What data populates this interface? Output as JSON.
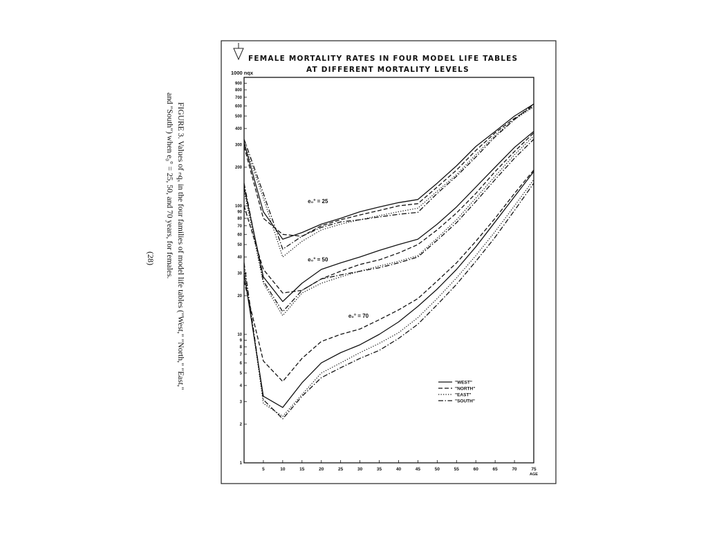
{
  "caption": {
    "line1": "FIGURE 3. Values of ₙqₓ in the four families of model life tables (\"West,\" \"North,\" \"East,\"",
    "line2": "and \"South\") when e₀° = 25, 50, and 70 years, for females.",
    "page_number": "(28)"
  },
  "chart_data": {
    "type": "line",
    "title": "FEMALE MORTALITY RATES IN FOUR MODEL LIFE TABLES",
    "subtitle": "AT DIFFERENT MORTALITY LEVELS",
    "ylabel": "1000 nqx",
    "xlabel": "AGE",
    "yscale": "log",
    "ylim": [
      1,
      1000
    ],
    "xlim": [
      0,
      75
    ],
    "x_ticks": [
      5,
      10,
      15,
      20,
      25,
      30,
      35,
      40,
      45,
      50,
      55,
      60,
      65,
      70,
      75
    ],
    "y_ticks": [
      {
        "value": 900,
        "label": "900"
      },
      {
        "value": 800,
        "label": "800"
      },
      {
        "value": 700,
        "label": "700"
      },
      {
        "value": 600,
        "label": "600"
      },
      {
        "value": 500,
        "label": "500"
      },
      {
        "value": 400,
        "label": "400"
      },
      {
        "value": 300,
        "label": "300"
      },
      {
        "value": 200,
        "label": "200"
      },
      {
        "value": 100,
        "label": "100"
      },
      {
        "value": 90,
        "label": "90"
      },
      {
        "value": 80,
        "label": "80"
      },
      {
        "value": 70,
        "label": "70"
      },
      {
        "value": 60,
        "label": "60"
      },
      {
        "value": 50,
        "label": "50"
      },
      {
        "value": 40,
        "label": "40"
      },
      {
        "value": 30,
        "label": "30"
      },
      {
        "value": 20,
        "label": "20"
      },
      {
        "value": 10,
        "label": "10"
      },
      {
        "value": 9,
        "label": "9"
      },
      {
        "value": 8,
        "label": "8"
      },
      {
        "value": 7,
        "label": "7"
      },
      {
        "value": 6,
        "label": "6"
      },
      {
        "value": 5,
        "label": "5"
      },
      {
        "value": 4,
        "label": "4"
      },
      {
        "value": 3,
        "label": "3"
      },
      {
        "value": 2,
        "label": "2"
      },
      {
        "value": 1,
        "label": "1"
      }
    ],
    "x": [
      0,
      5,
      10,
      15,
      20,
      25,
      30,
      35,
      40,
      45,
      50,
      55,
      60,
      65,
      70,
      75
    ],
    "level_labels": [
      {
        "text": "e₀° = 25",
        "x": 16.5,
        "y": 105
      },
      {
        "text": "e₀° = 50",
        "x": 16.5,
        "y": 37
      },
      {
        "text": "e₀° = 70",
        "x": 27,
        "y": 13.5
      }
    ],
    "legend_position": "bottom-right",
    "legend": [
      {
        "name": "\"WEST\"",
        "style": "solid"
      },
      {
        "name": "\"NORTH\"",
        "style": "dashed"
      },
      {
        "name": "\"EAST\"",
        "style": "dotted"
      },
      {
        "name": "\"SOUTH\"",
        "style": "dashdot"
      }
    ],
    "series": [
      {
        "level": "25",
        "family": "WEST",
        "style": "solid",
        "values": [
          310,
          90,
          55,
          62,
          72,
          80,
          90,
          98,
          106,
          112,
          150,
          205,
          290,
          380,
          500,
          620
        ]
      },
      {
        "level": "25",
        "family": "NORTH",
        "style": "dashed",
        "values": [
          290,
          80,
          60,
          58,
          70,
          78,
          85,
          92,
          100,
          104,
          140,
          190,
          270,
          370,
          480,
          600
        ]
      },
      {
        "level": "25",
        "family": "EAST",
        "style": "dotted",
        "values": [
          310,
          115,
          40,
          53,
          65,
          72,
          78,
          84,
          90,
          96,
          130,
          175,
          250,
          355,
          470,
          590
        ]
      },
      {
        "level": "25",
        "family": "SOUTH",
        "style": "dashdot",
        "values": [
          330,
          125,
          46,
          58,
          68,
          75,
          78,
          82,
          86,
          89,
          125,
          170,
          240,
          345,
          470,
          620
        ]
      },
      {
        "level": "50",
        "family": "WEST",
        "style": "solid",
        "values": [
          140,
          28,
          18,
          25,
          32,
          36,
          40,
          45,
          50,
          55,
          72,
          98,
          140,
          200,
          285,
          380
        ]
      },
      {
        "level": "50",
        "family": "NORTH",
        "style": "dashed",
        "values": [
          100,
          32,
          21,
          22,
          27,
          31,
          35,
          38,
          43,
          50,
          65,
          88,
          125,
          185,
          265,
          370
        ]
      },
      {
        "level": "50",
        "family": "EAST",
        "style": "dotted",
        "values": [
          130,
          25,
          14,
          21,
          25,
          28,
          31,
          34,
          37,
          41,
          56,
          78,
          115,
          170,
          250,
          350
        ]
      },
      {
        "level": "50",
        "family": "SOUTH",
        "style": "dashdot",
        "values": [
          150,
          26,
          15,
          22,
          27,
          29,
          31,
          33,
          36,
          40,
          54,
          74,
          108,
          160,
          235,
          330
        ]
      },
      {
        "level": "70",
        "family": "WEST",
        "style": "solid",
        "values": [
          30,
          3.3,
          2.7,
          4.2,
          6,
          7.2,
          8.3,
          10,
          12.5,
          16.5,
          22.5,
          32,
          48,
          75,
          118,
          185
        ]
      },
      {
        "level": "70",
        "family": "NORTH",
        "style": "dashed",
        "values": [
          26,
          6.2,
          4.3,
          6.5,
          8.8,
          10,
          11,
          13,
          15.5,
          19,
          26,
          36,
          53,
          80,
          125,
          190
        ]
      },
      {
        "level": "70",
        "family": "EAST",
        "style": "dotted",
        "values": [
          34,
          2.9,
          2.3,
          3.4,
          5,
          6,
          7.2,
          8.5,
          10.3,
          13.5,
          19,
          27.5,
          41,
          63,
          100,
          160
        ]
      },
      {
        "level": "70",
        "family": "SOUTH",
        "style": "dashdot",
        "values": [
          36,
          3.1,
          2.2,
          3.3,
          4.6,
          5.5,
          6.5,
          7.5,
          9.3,
          12,
          17,
          24.5,
          37,
          57,
          92,
          150
        ]
      }
    ]
  }
}
